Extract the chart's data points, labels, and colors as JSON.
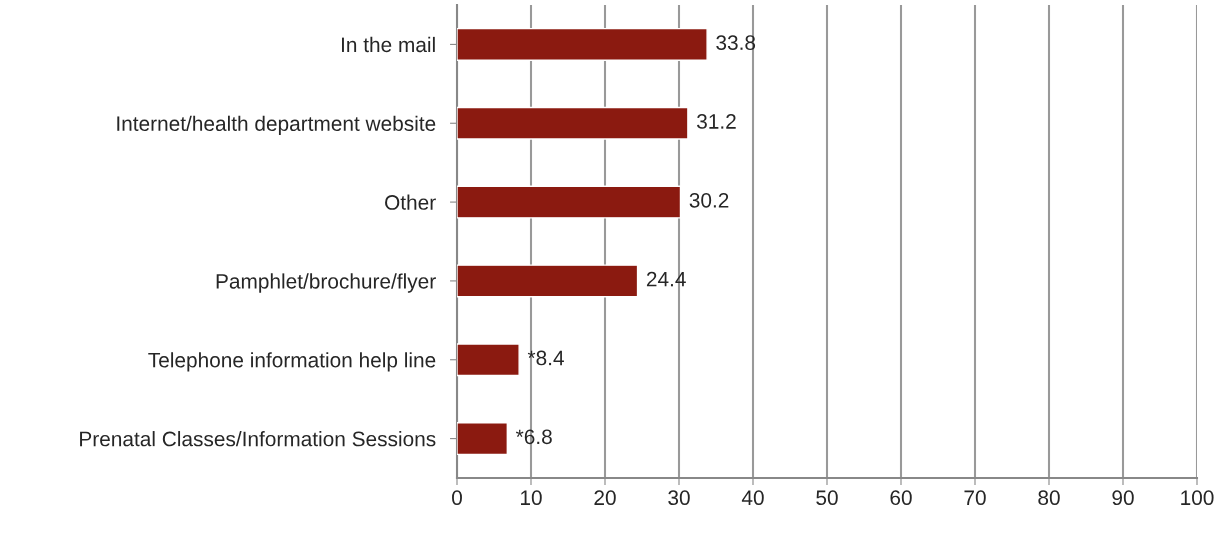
{
  "chart_data": {
    "type": "bar",
    "orientation": "horizontal",
    "categories": [
      "In the mail",
      "Internet/health department website",
      "Other",
      "Pamphlet/brochure/flyer",
      "Telephone information help line",
      "Prenatal Classes/Information Sessions"
    ],
    "values": [
      33.8,
      31.2,
      30.2,
      24.4,
      8.4,
      6.8
    ],
    "value_labels": [
      "33.8",
      "31.2",
      "30.2",
      "24.4",
      "*8.4",
      "*6.8"
    ],
    "color": "#8b1a10",
    "xlim": [
      0,
      100
    ],
    "xticks": [
      0,
      10,
      20,
      30,
      40,
      50,
      60,
      70,
      80,
      90,
      100
    ],
    "grid": "x",
    "legend": false
  }
}
